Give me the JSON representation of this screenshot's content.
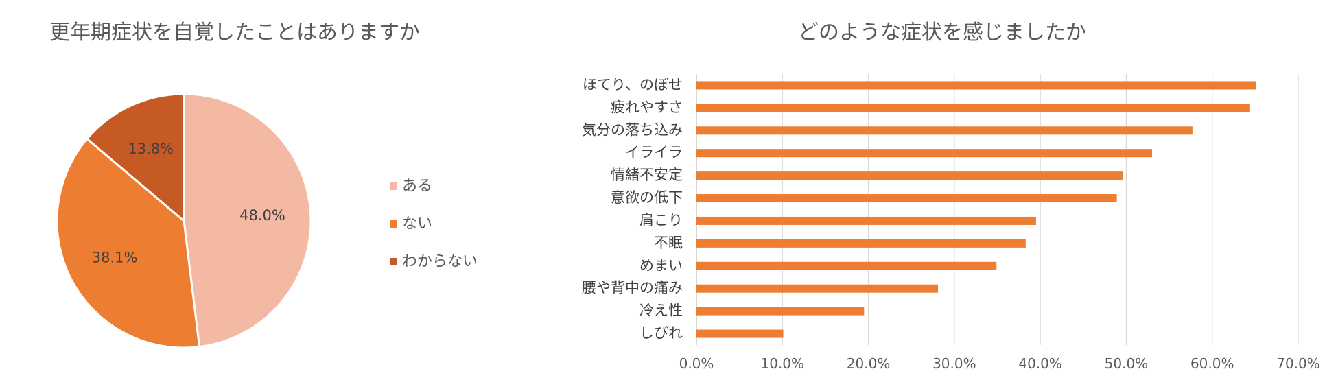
{
  "chart_data": [
    {
      "type": "pie",
      "title": "更年期症状を自覚したことはありますか",
      "slices": [
        {
          "label": "ある",
          "value": 48.0,
          "display": "48.0%",
          "color": "#F4B9A3"
        },
        {
          "label": "ない",
          "value": 38.1,
          "display": "38.1%",
          "color": "#ED7D31"
        },
        {
          "label": "わからない",
          "value": 13.8,
          "display": "13.8%",
          "color": "#C55A24"
        }
      ],
      "legend_position": "right"
    },
    {
      "type": "bar",
      "orientation": "horizontal",
      "title": "どのような症状を感じましたか",
      "categories": [
        "ほてり、のぼせ",
        "疲れやすさ",
        "気分の落ち込み",
        "イライラ",
        "情緒不安定",
        "意欲の低下",
        "肩こり",
        "不眠",
        "めまい",
        "腰や背中の痛み",
        "冷え性",
        "しびれ"
      ],
      "values": [
        65.1,
        64.4,
        57.7,
        53.0,
        49.6,
        48.9,
        39.5,
        38.3,
        34.9,
        28.1,
        19.5,
        10.1
      ],
      "xlim": [
        0,
        70
      ],
      "xticks": [
        "0.0%",
        "10.0%",
        "20.0%",
        "30.0%",
        "40.0%",
        "50.0%",
        "60.0%",
        "70.0%"
      ],
      "bar_color": "#ED7D31",
      "grid": true
    }
  ]
}
